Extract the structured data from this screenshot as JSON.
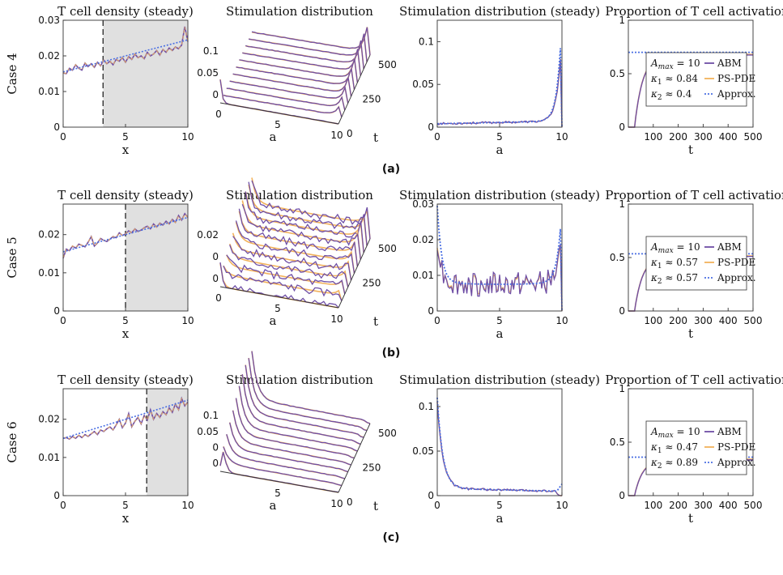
{
  "colors": {
    "abm": "#6f4fa6",
    "pspde": "#f2b25c",
    "approx": "#4a6fe3",
    "shade": "#e0e0e0",
    "dash": "#333333"
  },
  "titles": {
    "density": "T cell density (steady)",
    "stim": "Stimulation distribution",
    "stimSteady": "Stimulation distribution (steady)",
    "prop": "Proportion of T cell activation"
  },
  "axis_labels": {
    "x": "x",
    "a": "a",
    "t": "t"
  },
  "legend_labels": {
    "abm": "ABM",
    "pspde": "PS-PDE",
    "approx": "Approx."
  },
  "legend_symbols": {
    "amax": "A",
    "amax_sub": "max",
    "k": "κ",
    "approx": "≈"
  },
  "chart_data": [
    {
      "type": "line",
      "case": "Case 4",
      "label": "(a)",
      "density": {
        "title": "T cell density (steady)",
        "xlabel": "x",
        "xlim": [
          0,
          10
        ],
        "ylim": [
          0,
          0.03
        ],
        "yticks": [
          "0",
          "0.01",
          "0.02",
          "0.03"
        ],
        "xticks": [
          "0",
          "5",
          "10"
        ],
        "threshold": 3.2,
        "approx": [
          [
            0,
            0.0155
          ],
          [
            10,
            0.0245
          ]
        ],
        "abm": [
          0.0152,
          0.015,
          0.0165,
          0.016,
          0.0175,
          0.0165,
          0.016,
          0.018,
          0.017,
          0.0178,
          0.0168,
          0.0182,
          0.0172,
          0.0188,
          0.0178,
          0.0185,
          0.0175,
          0.019,
          0.0185,
          0.0195,
          0.0182,
          0.0198,
          0.019,
          0.0205,
          0.0195,
          0.02,
          0.0192,
          0.021,
          0.02,
          0.0205,
          0.0215,
          0.0202,
          0.0218,
          0.021,
          0.0222,
          0.0215,
          0.0225,
          0.022,
          0.023,
          0.0282,
          0.024
        ]
      },
      "stim3d": {
        "title": "Stimulation distribution",
        "zticks": [
          "0",
          "0.05",
          "0.1"
        ],
        "aticks": [
          "0",
          "5",
          "10"
        ],
        "tticks": [
          "0",
          "250",
          "500"
        ],
        "xlabel": "a",
        "ylabel": "t",
        "profile": "rising"
      },
      "stimSteady": {
        "title": "Stimulation distribution (steady)",
        "xlabel": "a",
        "xlim": [
          0,
          10
        ],
        "ylim": [
          0,
          0.125
        ],
        "yticks": [
          "0",
          "0.05",
          "0.1"
        ],
        "xticks": [
          "0",
          "5",
          "10"
        ],
        "profile": "rising",
        "peak": 0.105,
        "approxPeak": 0.122
      },
      "prop": {
        "title": "Proportion of T cell activation",
        "xlabel": "t",
        "xlim": [
          0,
          500
        ],
        "ylim": [
          0,
          1
        ],
        "yticks": [
          "0",
          "0.5",
          "1"
        ],
        "xticks": [
          "100",
          "200",
          "300",
          "400",
          "500"
        ],
        "plateau": 0.675,
        "approx": 0.7,
        "legend": {
          "amax": "= 10",
          "k1": "0.84",
          "k2": "0.4"
        }
      }
    },
    {
      "type": "line",
      "case": "Case 5",
      "label": "(b)",
      "density": {
        "title": "T cell density (steady)",
        "xlabel": "x",
        "xlim": [
          0,
          10
        ],
        "ylim": [
          0,
          0.028
        ],
        "yticks": [
          "0",
          "0.01",
          "0.02"
        ],
        "xticks": [
          "0",
          "5",
          "10"
        ],
        "threshold": 5.0,
        "approx": [
          [
            0,
            0.0155
          ],
          [
            10,
            0.0245
          ]
        ],
        "abm": [
          0.0138,
          0.0162,
          0.0158,
          0.017,
          0.0165,
          0.0175,
          0.0172,
          0.0168,
          0.018,
          0.0195,
          0.017,
          0.0178,
          0.019,
          0.0185,
          0.0182,
          0.0188,
          0.0195,
          0.0192,
          0.0205,
          0.0198,
          0.0202,
          0.021,
          0.0205,
          0.0215,
          0.0208,
          0.0212,
          0.0218,
          0.0222,
          0.0215,
          0.0228,
          0.022,
          0.023,
          0.0225,
          0.0235,
          0.0228,
          0.024,
          0.0232,
          0.025,
          0.0238,
          0.0255,
          0.0245
        ]
      },
      "stim3d": {
        "title": "Stimulation distribution",
        "zticks": [
          "0",
          "0",
          "0.02"
        ],
        "aticks": [
          "0",
          "5",
          "10"
        ],
        "tticks": [
          "250",
          "500"
        ],
        "xlabel": "a",
        "ylabel": "t",
        "profile": "ushape"
      },
      "stimSteady": {
        "title": "Stimulation distribution (steady)",
        "xlabel": "a",
        "xlim": [
          0,
          10
        ],
        "ylim": [
          0,
          0.03
        ],
        "yticks": [
          "0",
          "0.01",
          "0.02",
          "0.03"
        ],
        "xticks": [
          "0",
          "5",
          "10"
        ],
        "profile": "ushape",
        "peak": 0.02,
        "approxPeak": 0.029
      },
      "prop": {
        "title": "Proportion of T cell activation",
        "xlabel": "t",
        "xlim": [
          0,
          500
        ],
        "ylim": [
          0,
          1
        ],
        "yticks": [
          "0",
          "0.5",
          "1"
        ],
        "xticks": [
          "100",
          "200",
          "300",
          "400",
          "500"
        ],
        "plateau": 0.51,
        "approx": 0.535,
        "legend": {
          "amax": "= 10",
          "k1": "0.57",
          "k2": "0.57"
        }
      }
    },
    {
      "type": "line",
      "case": "Case 6",
      "label": "(c)",
      "density": {
        "title": "T cell density (steady)",
        "xlabel": "x",
        "xlim": [
          0,
          10
        ],
        "ylim": [
          0,
          0.028
        ],
        "yticks": [
          "0",
          "0.01",
          "0.02"
        ],
        "xticks": [
          "0",
          "5",
          "10"
        ],
        "threshold": 6.7,
        "approx": [
          [
            0,
            0.015
          ],
          [
            10,
            0.025
          ]
        ],
        "abm": [
          0.015,
          0.0152,
          0.0148,
          0.0155,
          0.015,
          0.0158,
          0.0152,
          0.016,
          0.0155,
          0.0162,
          0.0168,
          0.016,
          0.0172,
          0.0168,
          0.0175,
          0.018,
          0.0172,
          0.0185,
          0.02,
          0.0178,
          0.019,
          0.0215,
          0.018,
          0.0195,
          0.0205,
          0.0188,
          0.021,
          0.0198,
          0.0225,
          0.02,
          0.0215,
          0.0205,
          0.022,
          0.0212,
          0.023,
          0.0218,
          0.024,
          0.0225,
          0.0255,
          0.0235,
          0.0245
        ]
      },
      "stim3d": {
        "title": "Stimulation distribution",
        "zticks": [
          "0",
          "0",
          "0.05",
          "0.1"
        ],
        "aticks": [
          "5",
          "10"
        ],
        "tticks": [
          "0",
          "250",
          "500"
        ],
        "xlabel": "a",
        "ylabel": "t",
        "profile": "falling"
      },
      "stimSteady": {
        "title": "Stimulation distribution (steady)",
        "xlabel": "a",
        "xlim": [
          0,
          10
        ],
        "ylim": [
          0,
          0.12
        ],
        "yticks": [
          "0",
          "0.05",
          "0.1"
        ],
        "xticks": [
          "0",
          "5",
          "10"
        ],
        "profile": "falling",
        "peak": 0.105,
        "approxPeak": 0.11
      },
      "prop": {
        "title": "Proportion of T cell activation",
        "xlabel": "t",
        "xlim": [
          0,
          500
        ],
        "ylim": [
          0,
          1
        ],
        "yticks": [
          "0",
          "0.5",
          "1"
        ],
        "xticks": [
          "100",
          "200",
          "300",
          "400",
          "500"
        ],
        "plateau": 0.335,
        "approx": 0.36,
        "legend": {
          "amax": "= 10",
          "k1": "0.47",
          "k2": "0.89"
        }
      }
    }
  ]
}
